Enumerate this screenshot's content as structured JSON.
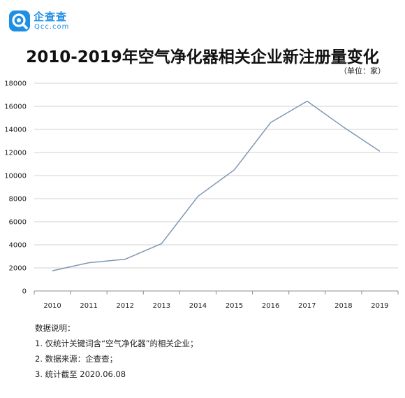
{
  "brand": {
    "name": "企查查",
    "sub": "Qcc.com",
    "color": "#1f8fe5"
  },
  "chart_data": {
    "type": "line",
    "title": "2010-2019年空气净化器相关企业新注册量变化",
    "unit_note": "（单位：家）",
    "x": [
      "2010",
      "2011",
      "2012",
      "2013",
      "2014",
      "2015",
      "2016",
      "2017",
      "2018",
      "2019"
    ],
    "series": [
      {
        "values": [
          1750,
          2450,
          2750,
          4100,
          8200,
          10500,
          14600,
          16450,
          14200,
          12100
        ]
      }
    ],
    "ylim": [
      0,
      18000
    ],
    "yticks": [
      "0",
      "2000",
      "4000",
      "6000",
      "8000",
      "10000",
      "12000",
      "14000",
      "16000",
      "18000"
    ],
    "grid": true,
    "line_color": "#7f97b2"
  },
  "notes": {
    "heading": "数据说明：",
    "items": [
      "1. 仅统计关键词含“空气净化器”的相关企业；",
      "2. 数据来源：企查查；",
      "3. 统计截至 2020.06.08"
    ]
  }
}
